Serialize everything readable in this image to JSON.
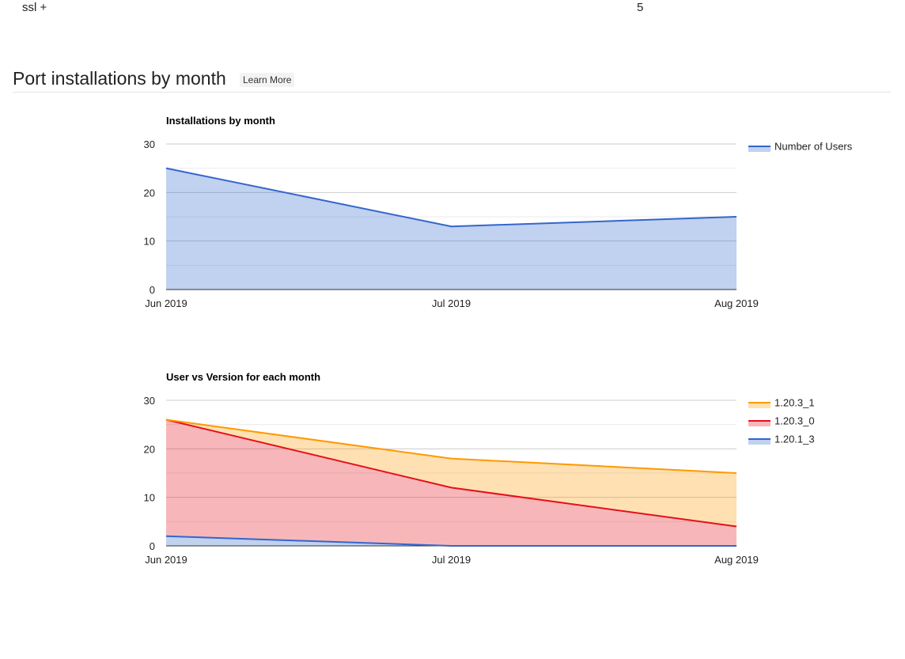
{
  "top_row": {
    "variant": "ssl +",
    "count": "5"
  },
  "section": {
    "title": "Port installations by month",
    "learn_more_label": "Learn More"
  },
  "chart_data": [
    {
      "type": "area",
      "title": "Installations by month",
      "xlabel": "",
      "ylabel": "",
      "categories": [
        "Jun 2019",
        "Jul 2019",
        "Aug 2019"
      ],
      "ylim": [
        0,
        30
      ],
      "yticks": [
        0,
        10,
        20,
        30
      ],
      "stacked": false,
      "grid": true,
      "legend": "right",
      "series": [
        {
          "name": "Number of Users",
          "values": [
            25,
            13,
            15
          ],
          "color": "#3366cc"
        }
      ]
    },
    {
      "type": "area",
      "title": "User vs Version for each month",
      "xlabel": "",
      "ylabel": "",
      "categories": [
        "Jun 2019",
        "Jul 2019",
        "Aug 2019"
      ],
      "ylim": [
        0,
        30
      ],
      "yticks": [
        0,
        10,
        20,
        30
      ],
      "stacked": true,
      "grid": true,
      "legend": "right",
      "series": [
        {
          "name": "1.20.1_3",
          "values": [
            2,
            0,
            0
          ],
          "color": "#3366cc"
        },
        {
          "name": "1.20.3_0",
          "values": [
            24,
            12,
            4
          ],
          "color": "#e5101a"
        },
        {
          "name": "1.20.3_1",
          "values": [
            0,
            6,
            11
          ],
          "color": "#ff9900"
        }
      ],
      "legend_order": [
        2,
        1,
        0
      ]
    }
  ]
}
